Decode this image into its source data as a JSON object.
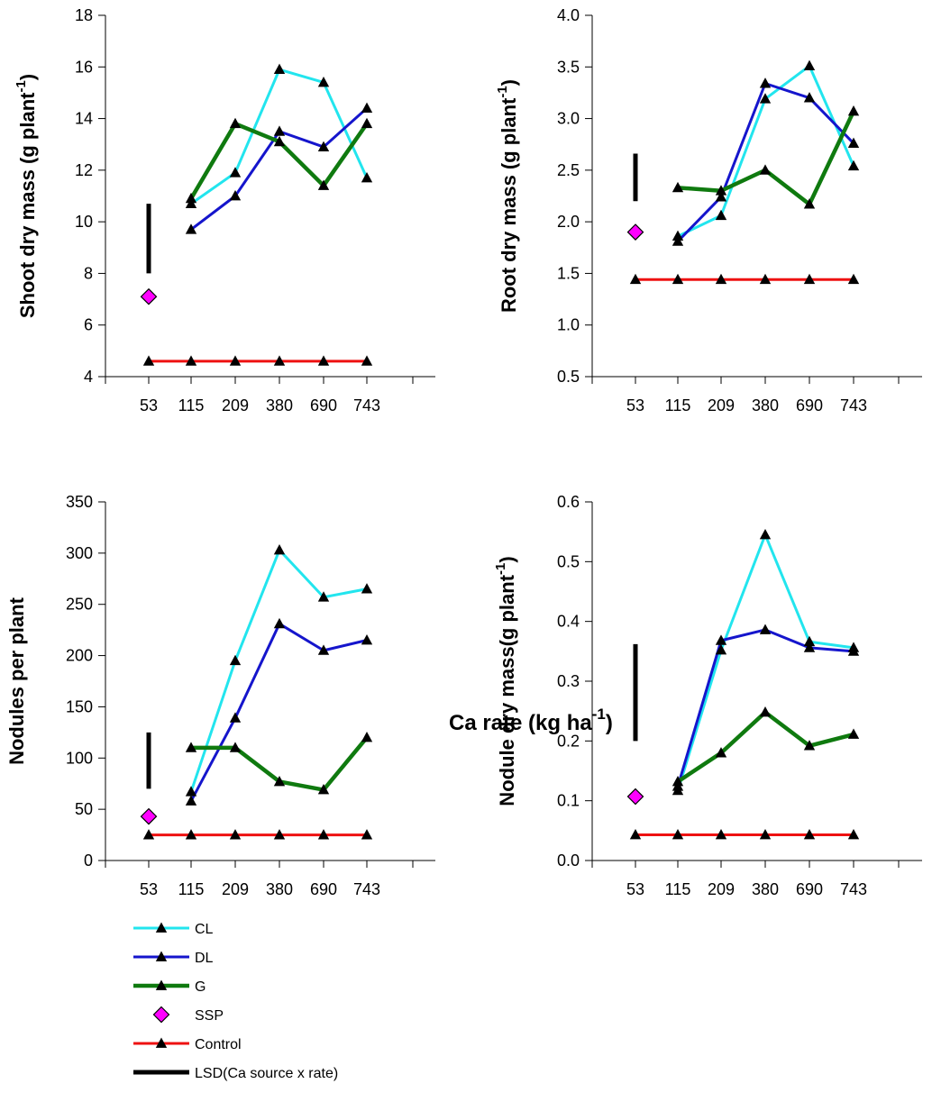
{
  "x_axis_title": "Ca rate (kg ha",
  "x_axis_title_sup": "-1",
  "x_axis_title_end": ")",
  "legend": {
    "items": [
      {
        "label": "CL",
        "color": "#22e5ee",
        "marker": "triangle",
        "line": true
      },
      {
        "label": "DL",
        "color": "#1515cc",
        "marker": "triangle",
        "line": true
      },
      {
        "label": "G",
        "color": "#0f7a0f",
        "marker": "triangle",
        "line": true
      },
      {
        "label": "SSP",
        "color": "#ff00ff",
        "marker": "diamond",
        "line": false
      },
      {
        "label": "Control",
        "color": "#ee1111",
        "marker": "triangle",
        "line": true
      },
      {
        "label": "LSD(Ca source x rate)",
        "color": "#000000",
        "marker": "none",
        "line": true
      }
    ]
  },
  "chart_data": [
    {
      "type": "line",
      "ylabel": "Shoot dry mass (g plant",
      "ylabel_sup": "-1",
      "ylabel_end": ")",
      "ylim": [
        4,
        18
      ],
      "yticks": [
        "4",
        "6",
        "8",
        "10",
        "12",
        "14",
        "16",
        "18"
      ],
      "categories": [
        "53",
        "115",
        "209",
        "380",
        "690",
        "743"
      ],
      "series": [
        {
          "name": "CL",
          "color": "#22e5ee",
          "x": [
            "115",
            "209",
            "380",
            "690",
            "743"
          ],
          "values": [
            10.7,
            11.9,
            15.9,
            15.4,
            11.7
          ]
        },
        {
          "name": "DL",
          "color": "#1515cc",
          "x": [
            "115",
            "209",
            "380",
            "690",
            "743"
          ],
          "values": [
            9.7,
            11.0,
            13.5,
            12.9,
            14.4
          ]
        },
        {
          "name": "G",
          "color": "#0f7a0f",
          "x": [
            "115",
            "209",
            "380",
            "690",
            "743"
          ],
          "values": [
            10.9,
            13.8,
            13.1,
            11.4,
            13.8
          ]
        },
        {
          "name": "Control",
          "color": "#ee1111",
          "x": [
            "53",
            "115",
            "209",
            "380",
            "690",
            "743"
          ],
          "values": [
            4.6,
            4.6,
            4.6,
            4.6,
            4.6,
            4.6
          ]
        }
      ],
      "ssp": {
        "x": "53",
        "value": 7.1
      },
      "lsd": {
        "x": "53",
        "from": 8.0,
        "to": 10.7
      }
    },
    {
      "type": "line",
      "ylabel": "Root dry mass (g plant",
      "ylabel_sup": "-1",
      "ylabel_end": ")",
      "ylim": [
        0.5,
        4.0
      ],
      "yticks": [
        "0.5",
        "1.0",
        "1.5",
        "2.0",
        "2.5",
        "3.0",
        "3.5",
        "4.0"
      ],
      "categories": [
        "53",
        "115",
        "209",
        "380",
        "690",
        "743"
      ],
      "series": [
        {
          "name": "CL",
          "color": "#22e5ee",
          "x": [
            "115",
            "209",
            "380",
            "690",
            "743"
          ],
          "values": [
            1.86,
            2.06,
            3.19,
            3.51,
            2.54
          ]
        },
        {
          "name": "DL",
          "color": "#1515cc",
          "x": [
            "115",
            "209",
            "380",
            "690",
            "743"
          ],
          "values": [
            1.81,
            2.24,
            3.34,
            3.2,
            2.76
          ]
        },
        {
          "name": "G",
          "color": "#0f7a0f",
          "x": [
            "115",
            "209",
            "380",
            "690",
            "743"
          ],
          "values": [
            2.33,
            2.3,
            2.5,
            2.17,
            3.07
          ]
        },
        {
          "name": "Control",
          "color": "#ee1111",
          "x": [
            "53",
            "115",
            "209",
            "380",
            "690",
            "743"
          ],
          "values": [
            1.44,
            1.44,
            1.44,
            1.44,
            1.44,
            1.44
          ]
        }
      ],
      "ssp": {
        "x": "53",
        "value": 1.9
      },
      "lsd": {
        "x": "53",
        "from": 2.2,
        "to": 2.66
      }
    },
    {
      "type": "line",
      "ylabel": "Nodules per plant",
      "ylabel_sup": "",
      "ylabel_end": "",
      "ylim": [
        0,
        350
      ],
      "yticks": [
        "0",
        "50",
        "100",
        "150",
        "200",
        "250",
        "300",
        "350"
      ],
      "categories": [
        "53",
        "115",
        "209",
        "380",
        "690",
        "743"
      ],
      "series": [
        {
          "name": "CL",
          "color": "#22e5ee",
          "x": [
            "115",
            "209",
            "380",
            "690",
            "743"
          ],
          "values": [
            67,
            195,
            303,
            257,
            265
          ]
        },
        {
          "name": "DL",
          "color": "#1515cc",
          "x": [
            "115",
            "209",
            "380",
            "690",
            "743"
          ],
          "values": [
            58,
            139,
            231,
            205,
            215
          ]
        },
        {
          "name": "G",
          "color": "#0f7a0f",
          "x": [
            "115",
            "209",
            "380",
            "690",
            "743"
          ],
          "values": [
            110,
            110,
            77,
            69,
            120
          ]
        },
        {
          "name": "Control",
          "color": "#ee1111",
          "x": [
            "53",
            "115",
            "209",
            "380",
            "690",
            "743"
          ],
          "values": [
            25,
            25,
            25,
            25,
            25,
            25
          ]
        }
      ],
      "ssp": {
        "x": "53",
        "value": 43
      },
      "lsd": {
        "x": "53",
        "from": 70,
        "to": 125
      }
    },
    {
      "type": "line",
      "ylabel": "Nodule dry mass(g plant",
      "ylabel_sup": "-1",
      "ylabel_end": ")",
      "ylim": [
        0.0,
        0.6
      ],
      "yticks": [
        "0.0",
        "0.1",
        "0.2",
        "0.3",
        "0.4",
        "0.5",
        "0.6"
      ],
      "categories": [
        "53",
        "115",
        "209",
        "380",
        "690",
        "743"
      ],
      "series": [
        {
          "name": "CL",
          "color": "#22e5ee",
          "x": [
            "115",
            "209",
            "380",
            "690",
            "743"
          ],
          "values": [
            0.117,
            0.352,
            0.545,
            0.366,
            0.356
          ]
        },
        {
          "name": "DL",
          "color": "#1515cc",
          "x": [
            "115",
            "209",
            "380",
            "690",
            "743"
          ],
          "values": [
            0.124,
            0.368,
            0.386,
            0.356,
            0.35
          ]
        },
        {
          "name": "G",
          "color": "#0f7a0f",
          "x": [
            "115",
            "209",
            "380",
            "690",
            "743"
          ],
          "values": [
            0.132,
            0.18,
            0.248,
            0.192,
            0.211
          ]
        },
        {
          "name": "Control",
          "color": "#ee1111",
          "x": [
            "53",
            "115",
            "209",
            "380",
            "690",
            "743"
          ],
          "values": [
            0.043,
            0.043,
            0.043,
            0.043,
            0.043,
            0.043
          ]
        }
      ],
      "ssp": {
        "x": "53",
        "value": 0.107
      },
      "lsd": {
        "x": "53",
        "from": 0.2,
        "to": 0.362
      }
    }
  ]
}
